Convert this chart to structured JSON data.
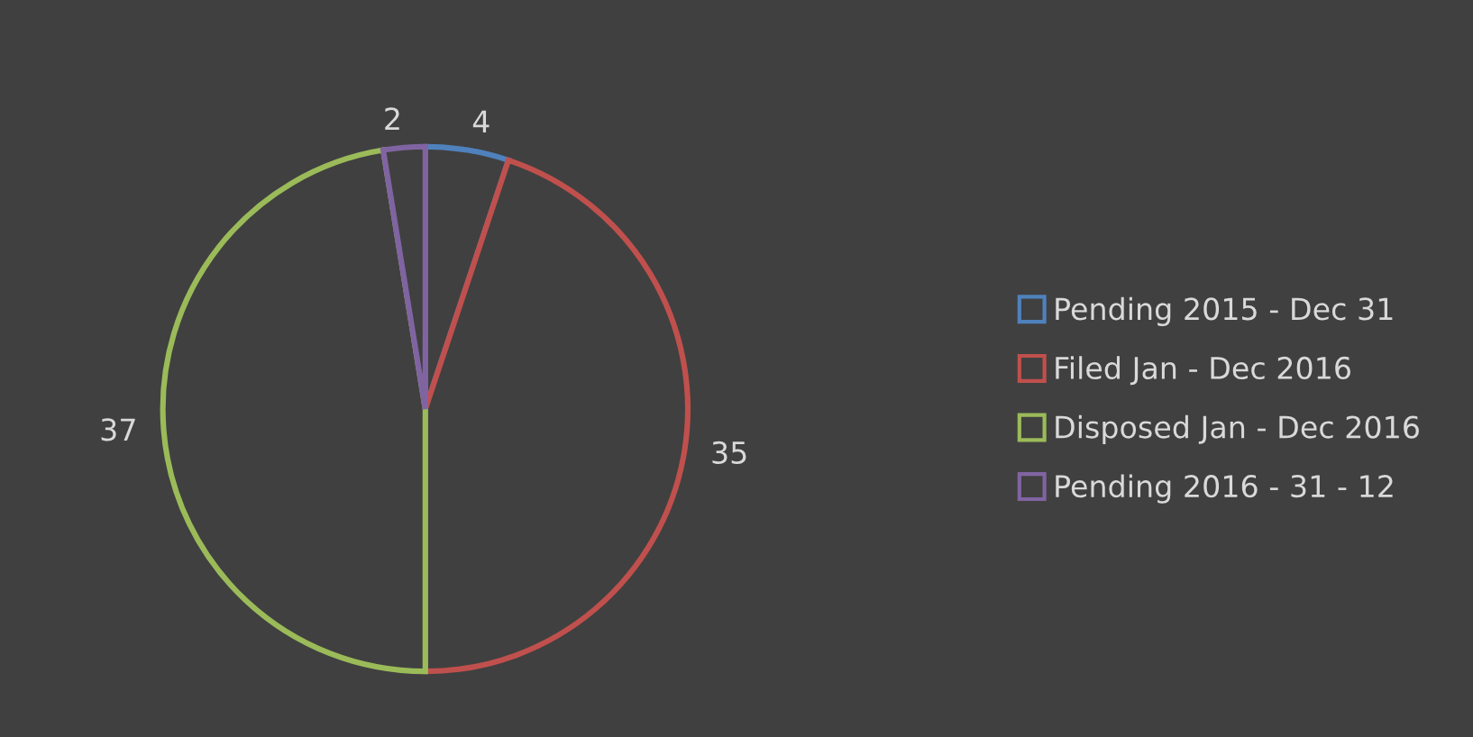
{
  "chart_data": {
    "type": "pie",
    "categories": [
      "Pending 2015 - Dec 31",
      "Filed Jan - Dec 2016",
      "Disposed Jan - Dec 2016",
      "Pending 2016 - 31 - 12"
    ],
    "values": [
      4,
      35,
      37,
      2
    ],
    "colors": [
      "#4f81bd",
      "#c0504d",
      "#9bbb59",
      "#8064a2"
    ],
    "data_labels": true,
    "legend": "right"
  }
}
